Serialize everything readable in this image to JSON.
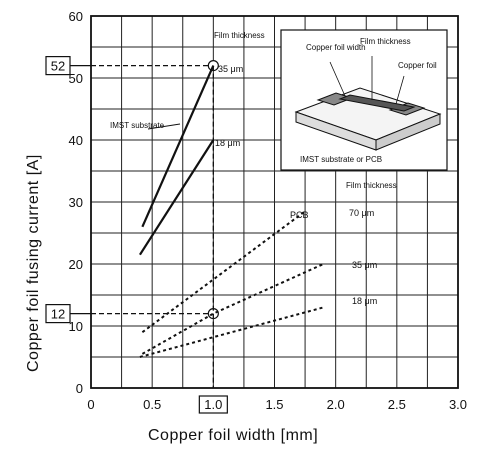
{
  "chart_data": {
    "type": "line",
    "xlabel": "Copper foil width [mm]",
    "ylabel": "Copper foil fusing current [A]",
    "xlim": [
      0,
      3.0
    ],
    "ylim": [
      0,
      60
    ],
    "x_ticks": [
      "0",
      "0.5",
      "1.0",
      "1.5",
      "2.0",
      "2.5",
      "3.0"
    ],
    "y_ticks": [
      "0",
      "10",
      "20",
      "30",
      "40",
      "50",
      "60"
    ],
    "grid": true,
    "highlight": {
      "x_label": "1.0",
      "y_labels": [
        "52",
        "12"
      ]
    },
    "series": [
      {
        "name": "35 μm",
        "group": "IMST substrate",
        "style": "solid",
        "points": [
          [
            0.42,
            26
          ],
          [
            1.0,
            52
          ]
        ]
      },
      {
        "name": "18 μm",
        "group": "IMST substrate",
        "style": "solid",
        "points": [
          [
            0.4,
            21.5
          ],
          [
            1.0,
            40
          ]
        ]
      },
      {
        "name": "70 μm",
        "group": "PCB",
        "style": "dashed",
        "points": [
          [
            0.42,
            9
          ],
          [
            1.75,
            28.5
          ]
        ]
      },
      {
        "name": "35 μm",
        "group": "PCB",
        "style": "dashed",
        "points": [
          [
            0.42,
            5.5
          ],
          [
            1.0,
            12
          ],
          [
            1.9,
            20
          ]
        ]
      },
      {
        "name": "18 μm",
        "group": "PCB",
        "style": "dashed",
        "points": [
          [
            0.4,
            5
          ],
          [
            1.9,
            13
          ]
        ]
      }
    ],
    "annotations": {
      "film_thickness_top": "Film thickness",
      "film_thickness_pcb": "Film thickness",
      "label_35_top": "35 μm",
      "label_18_top": "18 μm",
      "label_70_pcb": "70 μm",
      "label_35_pcb": "35 μm",
      "label_18_pcb": "18 μm",
      "imst_label": "IMST substrate",
      "pcb_label": "PCB"
    },
    "inset": {
      "copper_foil_width": "Copper foil width",
      "film_thickness": "Film thickness",
      "copper_foil": "Copper foil",
      "caption": "IMST substrate or PCB"
    }
  }
}
